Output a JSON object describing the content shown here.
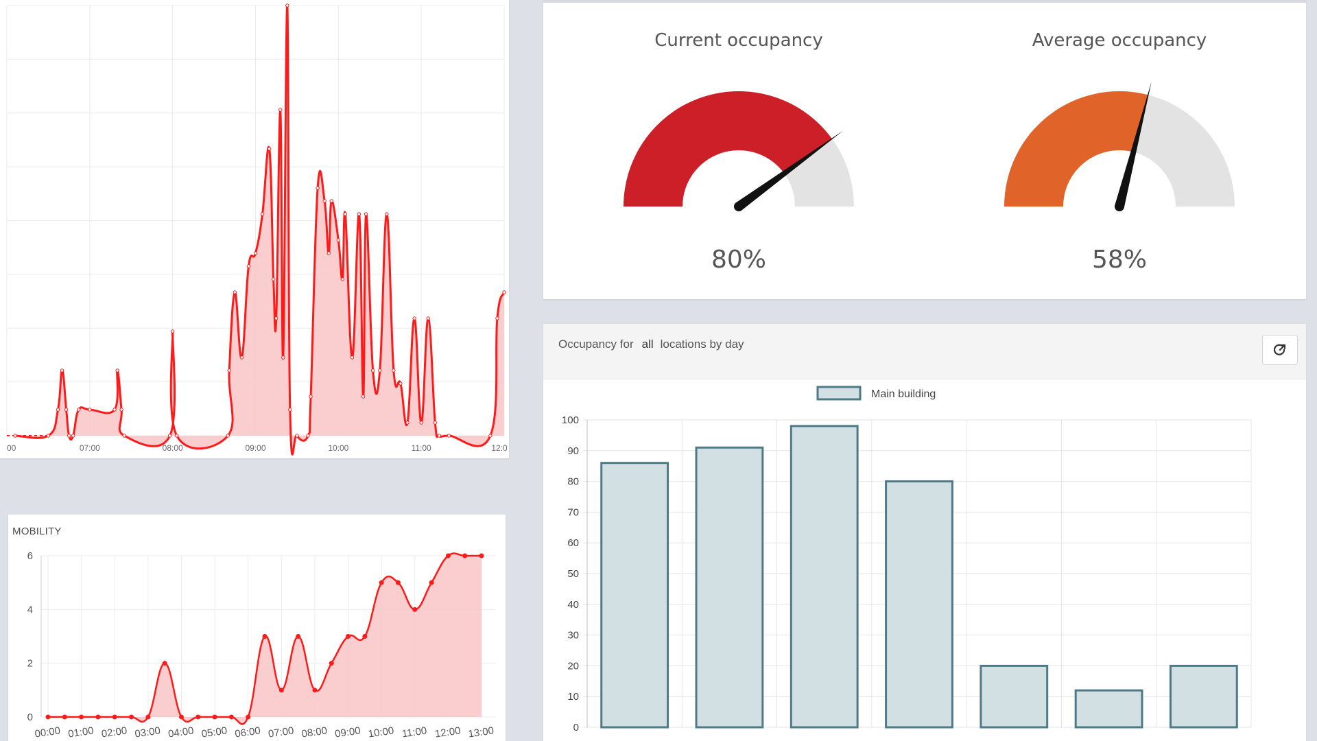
{
  "panels": {
    "mobility": {
      "title": "MOBILITY"
    },
    "gauges": [
      {
        "label": "Current occupancy",
        "value": 80,
        "display": "80%",
        "color": "#cc1f27"
      },
      {
        "label": "Average occupancy",
        "value": 58,
        "display": "58%",
        "color": "#e0632a"
      }
    ],
    "bar_panel": {
      "prefix": "Occupancy for",
      "scope": "all",
      "suffix": "locations by day",
      "export_icon": "external-link-icon"
    }
  },
  "colors": {
    "line": "#ff1a1a",
    "fill": "#f9c6c6",
    "bar_fill": "#d3e0e3",
    "bar_stroke": "#4d7a86",
    "gauge_bg": "#e3e3e3"
  },
  "chart_data": [
    {
      "type": "area",
      "xlabel": "",
      "ylabel": "",
      "xticks": [
        "00",
        "07:00",
        "08:00",
        "09:00",
        "10:00",
        "11:00",
        "12:0"
      ],
      "x_range": [
        "06:06",
        "12:00"
      ],
      "series": [
        {
          "values": [
            [
              "06:06",
              0
            ],
            [
              "06:30",
              0
            ],
            [
              "06:37",
              0.2
            ],
            [
              "06:40",
              0.5
            ],
            [
              "06:43",
              0.2
            ],
            [
              "06:45",
              0
            ],
            [
              "06:48",
              0
            ],
            [
              "06:52",
              0.2
            ],
            [
              "07:00",
              0.2
            ],
            [
              "07:18",
              0.2
            ],
            [
              "07:20",
              0.5
            ],
            [
              "07:23",
              0.2
            ],
            [
              "07:25",
              0
            ],
            [
              "07:58",
              0
            ],
            [
              "08:00",
              0.8
            ],
            [
              "08:03",
              0
            ],
            [
              "08:40",
              0
            ],
            [
              "08:41",
              0.5
            ],
            [
              "08:45",
              1.1
            ],
            [
              "08:50",
              0.6
            ],
            [
              "08:55",
              1.3
            ],
            [
              "09:00",
              1.4
            ],
            [
              "09:05",
              1.7
            ],
            [
              "09:10",
              2.2
            ],
            [
              "09:13",
              1.2
            ],
            [
              "09:15",
              0.9
            ],
            [
              "09:18",
              2.5
            ],
            [
              "09:20",
              0.6
            ],
            [
              "09:23",
              3.3
            ],
            [
              "09:25",
              0.2
            ],
            [
              "09:30",
              0
            ],
            [
              "09:38",
              0
            ],
            [
              "09:40",
              0.3
            ],
            [
              "09:45",
              1.9
            ],
            [
              "09:50",
              1.8
            ],
            [
              "09:53",
              1.4
            ],
            [
              "09:55",
              1.8
            ],
            [
              "10:00",
              1.5
            ],
            [
              "10:03",
              1.2
            ],
            [
              "10:05",
              1.7
            ],
            [
              "10:10",
              0.6
            ],
            [
              "10:15",
              1.7
            ],
            [
              "10:18",
              0.3
            ],
            [
              "10:20",
              1.7
            ],
            [
              "10:25",
              0.5
            ],
            [
              "10:30",
              0.5
            ],
            [
              "10:35",
              1.7
            ],
            [
              "10:40",
              0.5
            ],
            [
              "10:45",
              0.4
            ],
            [
              "10:50",
              0.1
            ],
            [
              "10:55",
              0.9
            ],
            [
              "11:00",
              0.1
            ],
            [
              "11:05",
              0.9
            ],
            [
              "11:10",
              0.1
            ],
            [
              "11:13",
              0
            ],
            [
              "11:20",
              0
            ],
            [
              "11:50",
              0
            ],
            [
              "11:55",
              0.9
            ],
            [
              "12:00",
              1.1
            ]
          ]
        }
      ]
    },
    {
      "type": "area",
      "title": "MOBILITY",
      "xlabel": "",
      "ylabel": "",
      "ylim": [
        0,
        6
      ],
      "yticks": [
        0,
        2,
        4,
        6
      ],
      "categories": [
        "00:00",
        "01:00",
        "02:00",
        "03:00",
        "04:00",
        "05:00",
        "06:00",
        "07:00",
        "08:00",
        "09:00",
        "10:00",
        "11:00",
        "12:00",
        "13:00"
      ],
      "series": [
        {
          "x": [
            0,
            0.5,
            1,
            1.5,
            2,
            2.5,
            3,
            3.5,
            4,
            4.5,
            5,
            5.5,
            6,
            6.5,
            7,
            7.5,
            8,
            8.5,
            9,
            9.5,
            10,
            10.5,
            11,
            11.5,
            12,
            12.5,
            13
          ],
          "values": [
            0,
            0,
            0,
            0,
            0,
            0,
            0,
            2,
            0,
            0,
            0,
            0,
            0,
            3,
            1,
            3,
            1,
            2,
            3,
            3,
            5,
            5,
            4,
            5,
            6,
            6,
            6
          ]
        }
      ]
    },
    {
      "type": "bar",
      "legend": [
        "Main building"
      ],
      "legend_position": "top",
      "ylim": [
        0,
        100
      ],
      "yticks": [
        0,
        10,
        20,
        30,
        40,
        50,
        60,
        70,
        80,
        90,
        100
      ],
      "categories": [
        "",
        "",
        "",
        "",
        "",
        "",
        ""
      ],
      "series": [
        {
          "name": "Main building",
          "values": [
            86,
            91,
            98,
            80,
            20,
            12,
            20
          ]
        }
      ],
      "grid": true
    }
  ]
}
